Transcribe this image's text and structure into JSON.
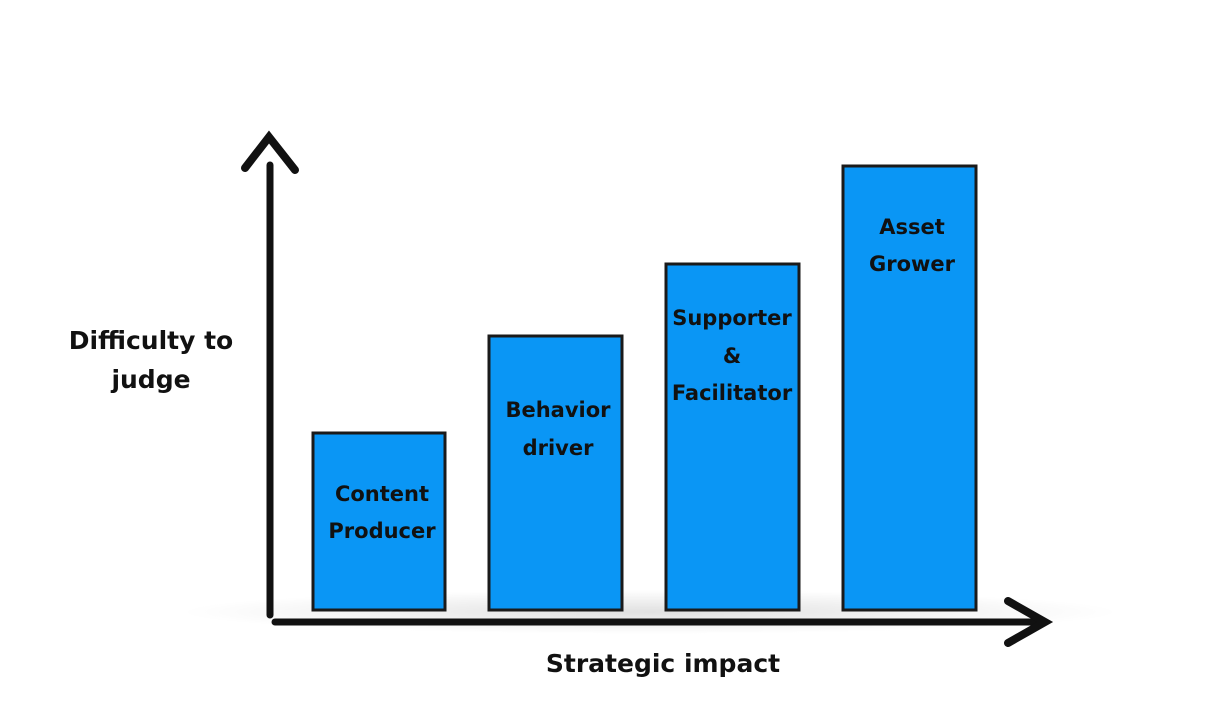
{
  "y_axis": {
    "label_lines": [
      "Difficulty to",
      "judge"
    ]
  },
  "x_axis": {
    "label": "Strategic impact"
  },
  "bars": [
    {
      "label_lines": [
        "Content",
        "Producer"
      ]
    },
    {
      "label_lines": [
        "Behavior",
        "driver"
      ]
    },
    {
      "label_lines": [
        "Supporter",
        "&",
        "Facilitator"
      ]
    },
    {
      "label_lines": [
        "Asset",
        "Grower"
      ]
    }
  ]
}
